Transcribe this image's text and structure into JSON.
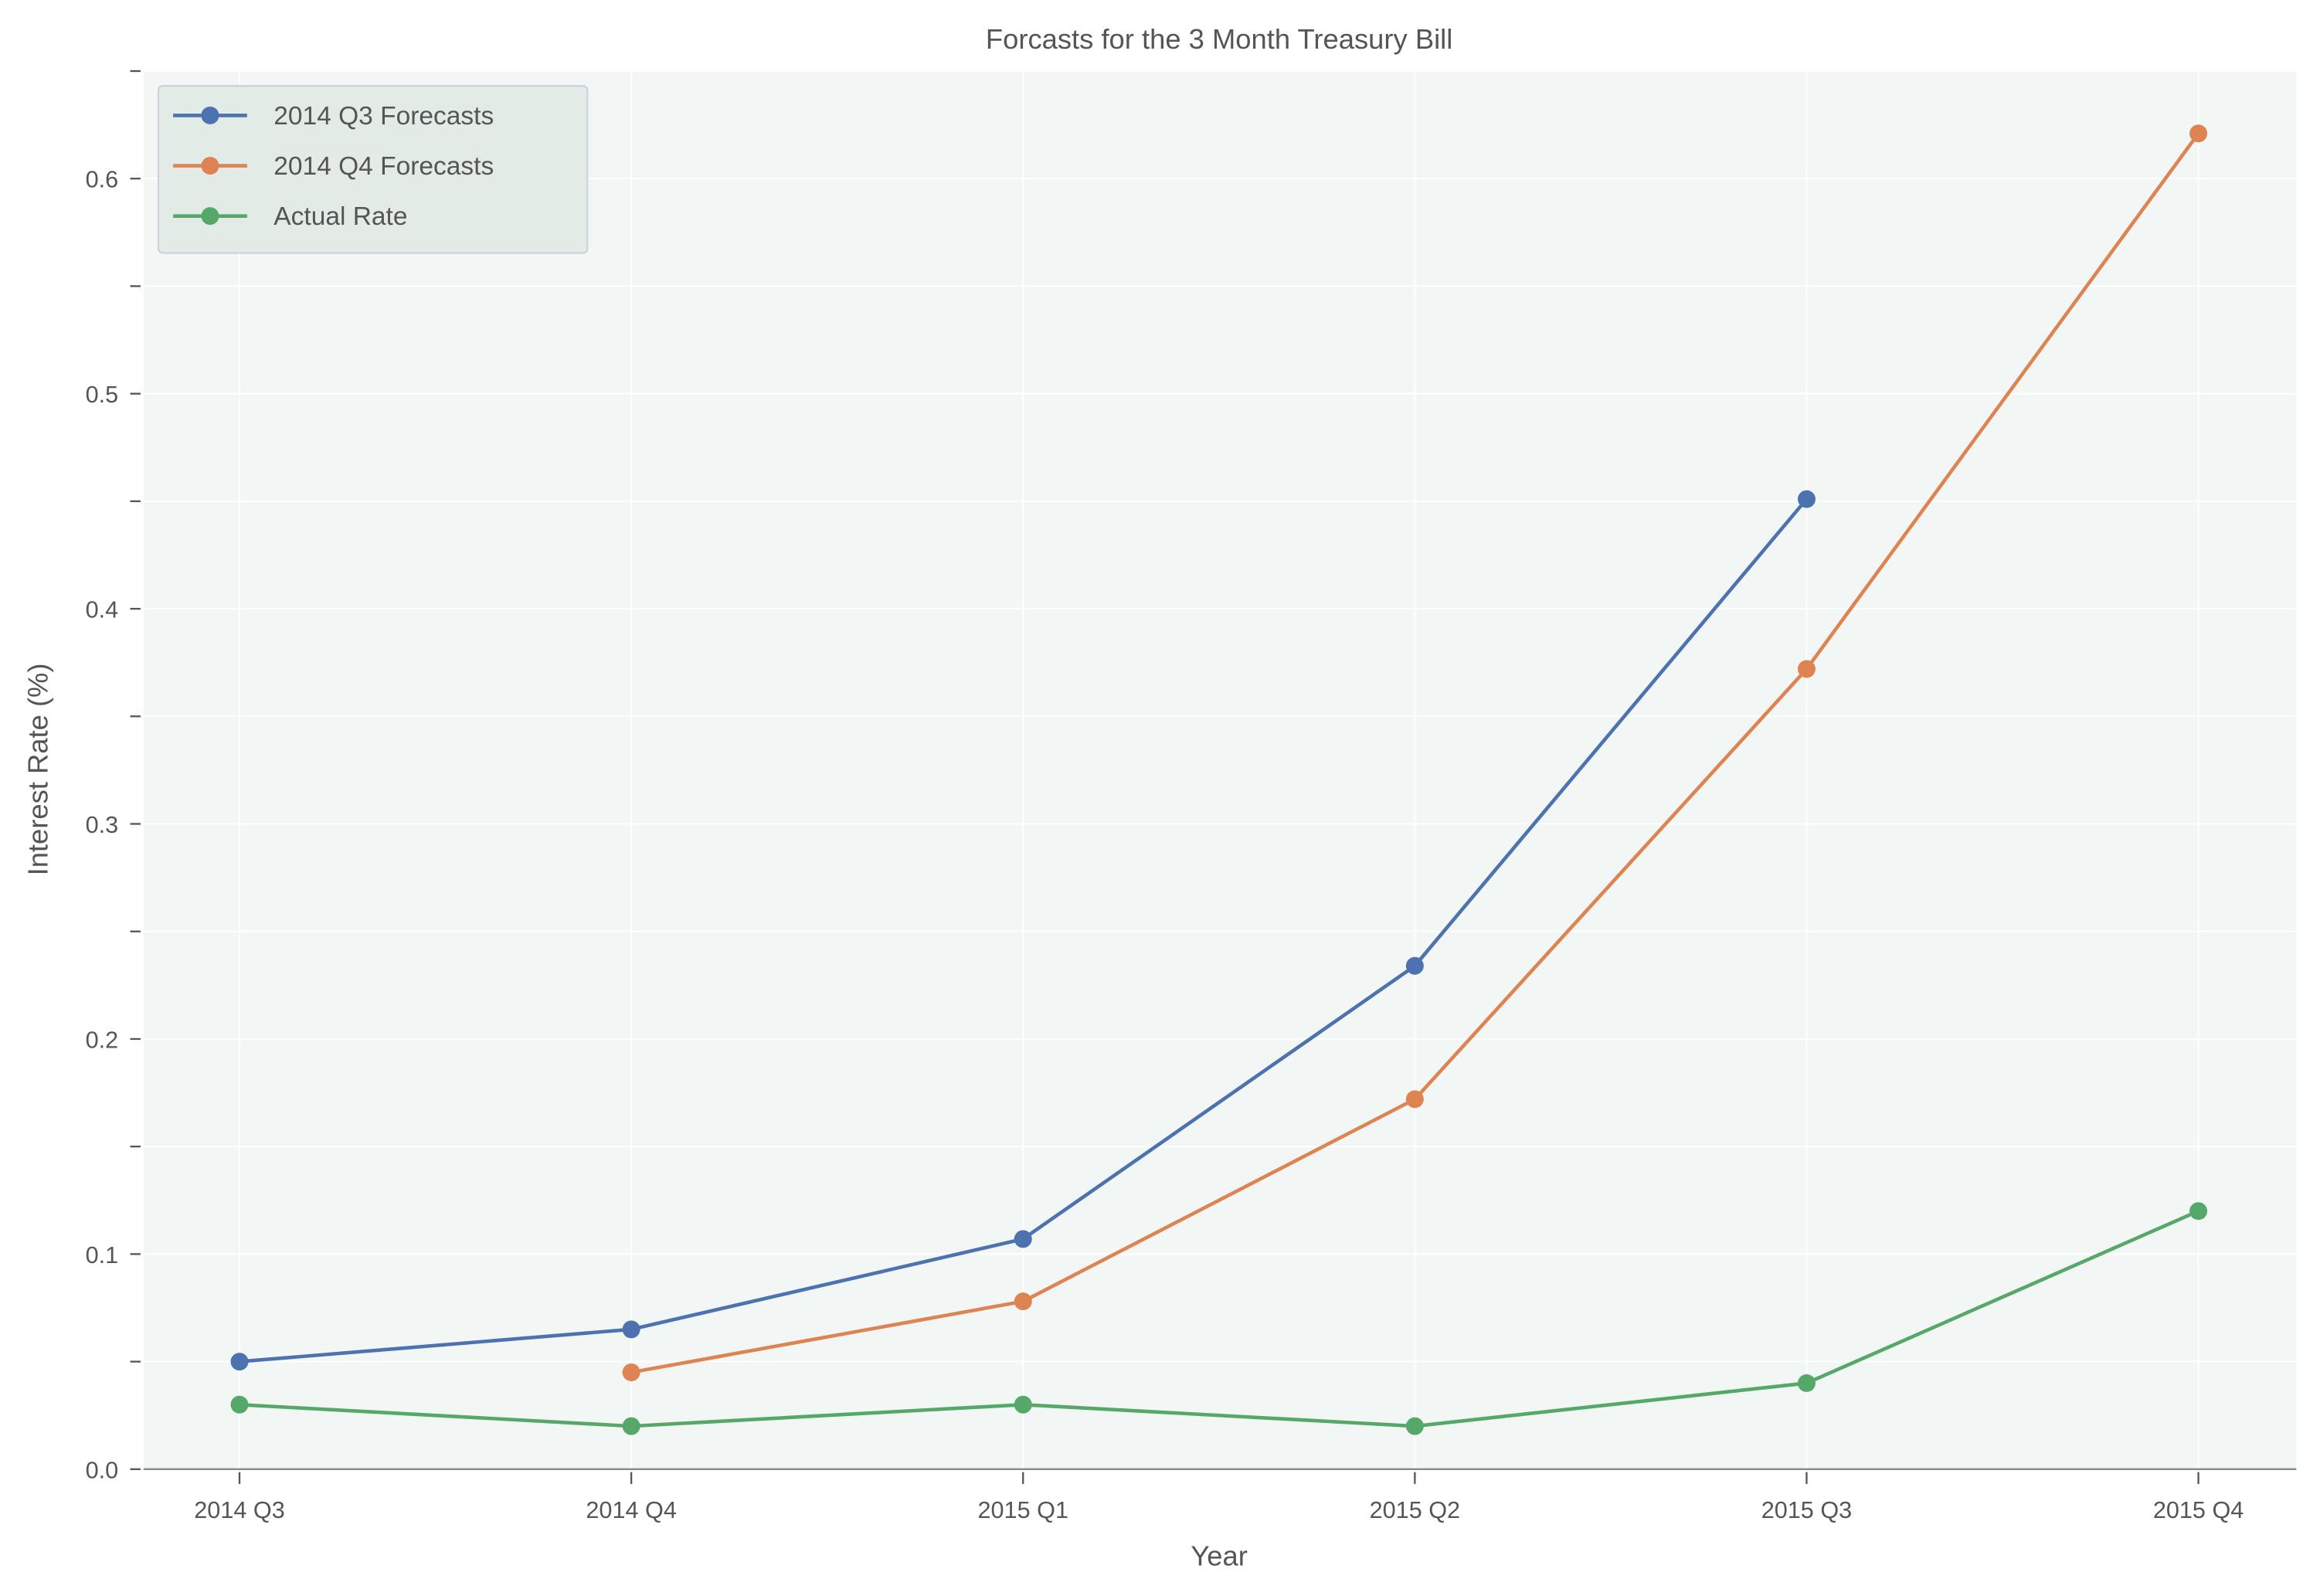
{
  "chart_data": {
    "type": "line",
    "title": "Forcasts for the 3 Month Treasury Bill",
    "xlabel": "Year",
    "ylabel": "Interest Rate (%)",
    "categories": [
      "2014 Q3",
      "2014 Q4",
      "2015 Q1",
      "2015 Q2",
      "2015 Q3",
      "2015 Q4"
    ],
    "ylim": [
      0,
      0.65
    ],
    "yticks": [
      0.0,
      0.1,
      0.2,
      0.3,
      0.4,
      0.5,
      0.6
    ],
    "ytick_labels": [
      "0.0",
      "0.1",
      "0.2",
      "0.3",
      "0.4",
      "0.5",
      "0.6"
    ],
    "grid": true,
    "legend_position": "top-left",
    "series": [
      {
        "name": "2014 Q3 Forecasts",
        "color": "#4c72b0",
        "values": [
          0.05,
          0.065,
          0.107,
          0.234,
          0.451,
          null
        ]
      },
      {
        "name": "2014 Q4 Forecasts",
        "color": "#dd8452",
        "values": [
          null,
          0.045,
          0.078,
          0.172,
          0.372,
          0.621
        ]
      },
      {
        "name": "Actual Rate",
        "color": "#55a868",
        "values": [
          0.03,
          0.02,
          0.03,
          0.02,
          0.04,
          0.12
        ]
      }
    ]
  }
}
